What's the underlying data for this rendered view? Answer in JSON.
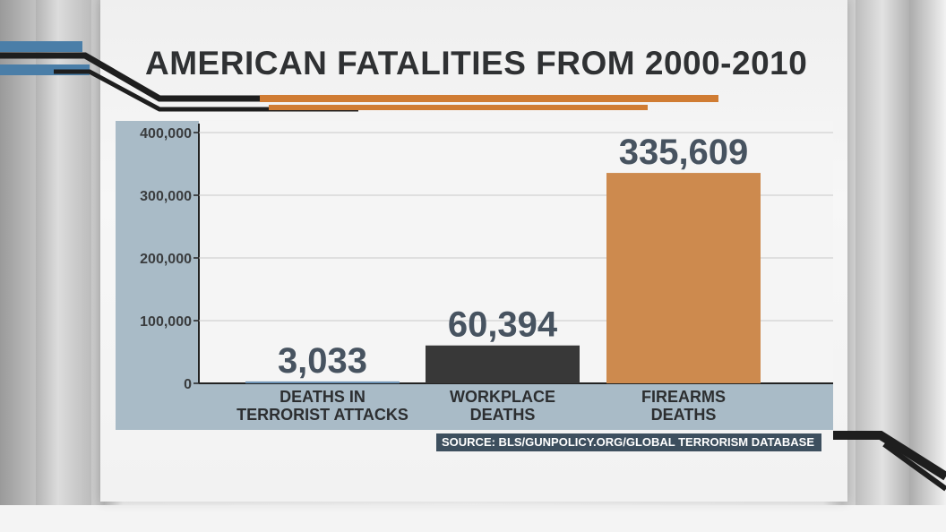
{
  "colors": {
    "terrorist": "#6e93b5",
    "workplace": "#383838",
    "firearms": "#cd8a4e",
    "accent_blue": "#4a7ea8",
    "accent_orange": "#d07c33",
    "axis_panel": "#a9bbc7",
    "source_bg": "#3d4f5e"
  },
  "chart_data": {
    "type": "bar",
    "title": "AMERICAN FATALITIES FROM 2000-2010",
    "categories": [
      [
        "DEATHS IN",
        "TERRORIST ATTACKS"
      ],
      [
        "WORKPLACE",
        "DEATHS"
      ],
      [
        "FIREARMS",
        "DEATHS"
      ]
    ],
    "values": [
      3033,
      60394,
      335609
    ],
    "data_labels": [
      "3,033",
      "60,394",
      "335,609"
    ],
    "yticks": [
      0,
      100000,
      200000,
      300000,
      400000
    ],
    "ytick_labels": [
      "0",
      "100,000",
      "200,000",
      "300,000",
      "400,000"
    ],
    "ylim": [
      0,
      400000
    ],
    "xlabel": "",
    "ylabel": "",
    "grid": true
  },
  "source": "SOURCE: BLS/GUNPOLICY.ORG/GLOBAL TERRORISM DATABASE"
}
